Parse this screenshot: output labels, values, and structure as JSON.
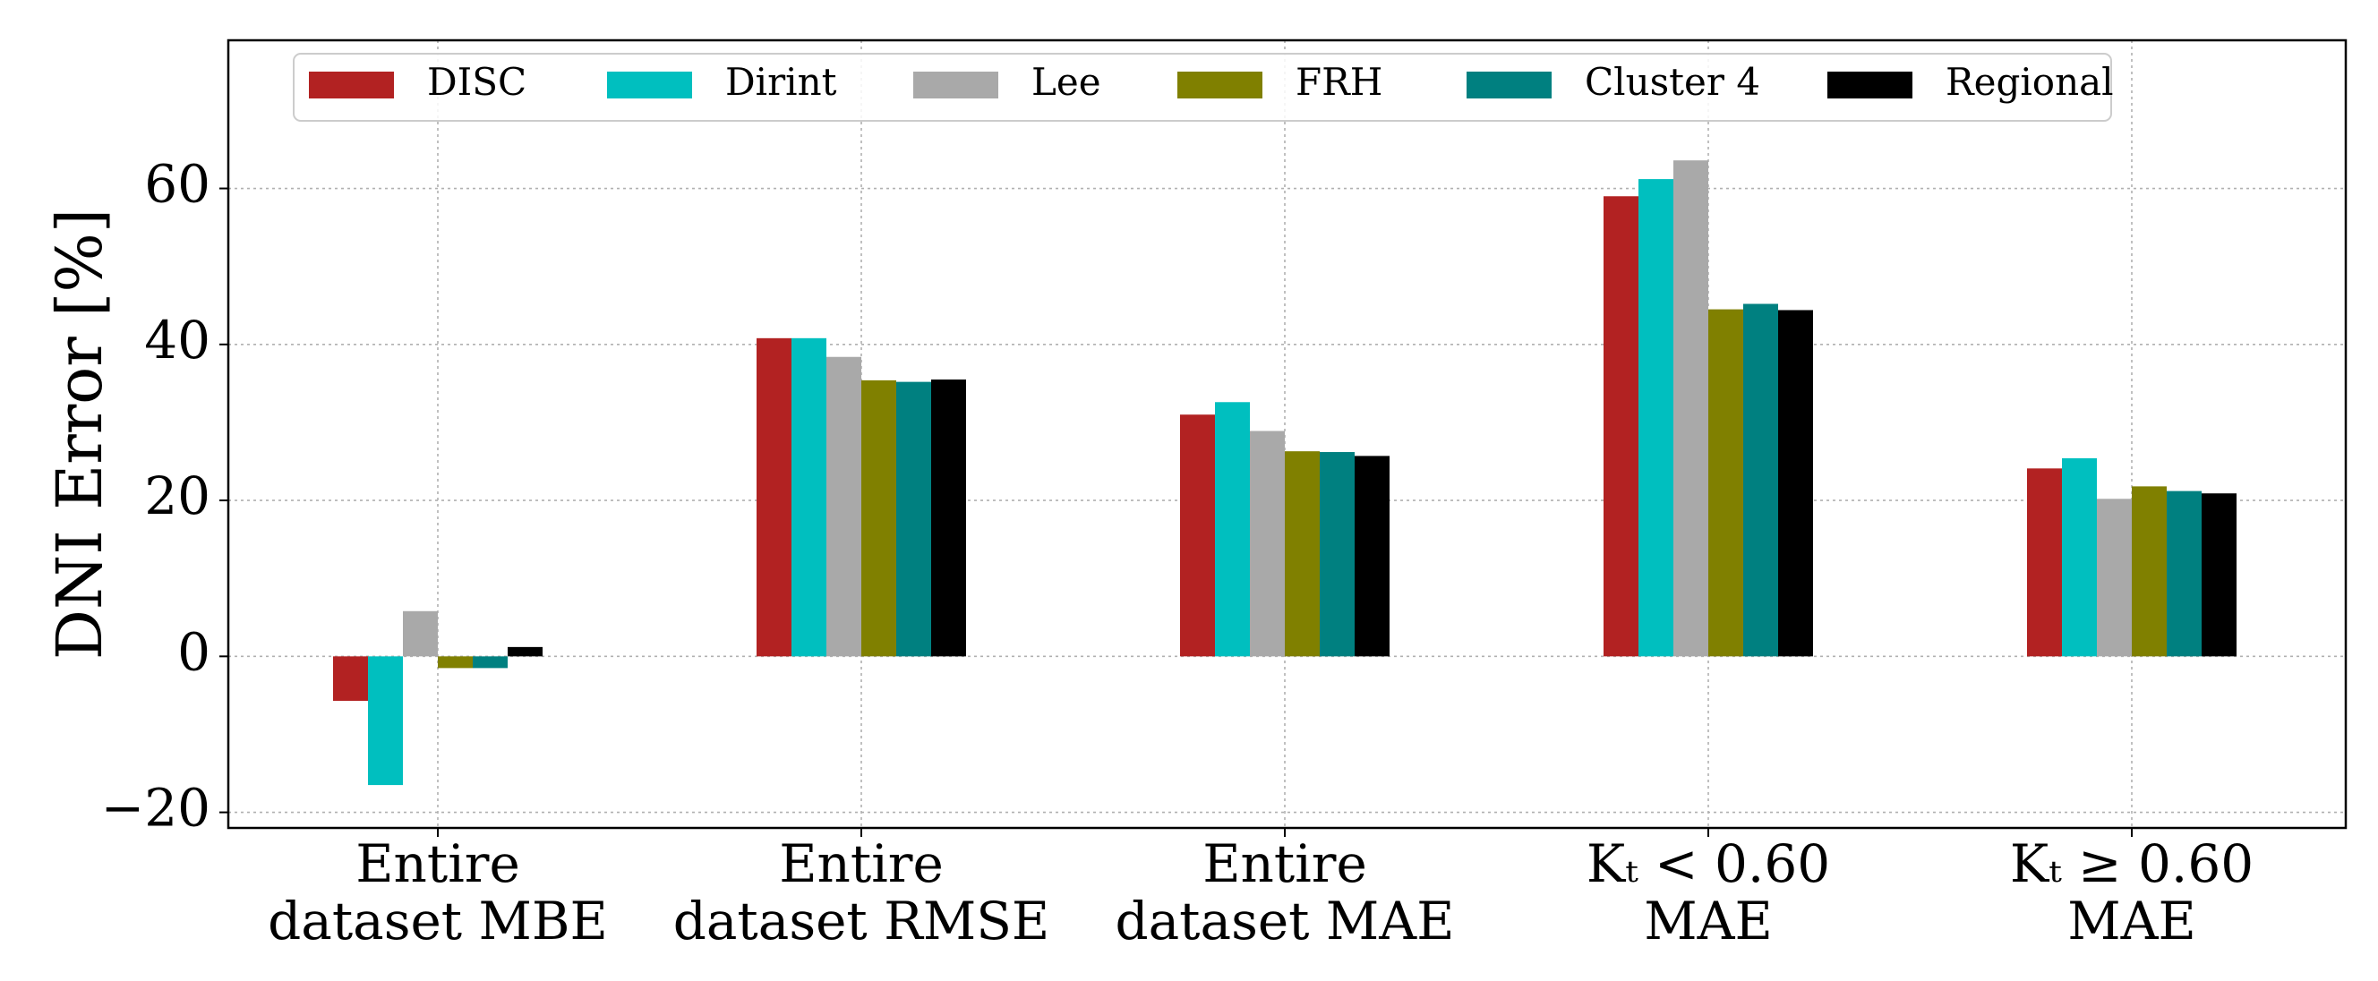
{
  "chart_data": {
    "type": "bar",
    "title": "",
    "xlabel": "",
    "ylabel": "DNI Error [%]",
    "ylim": [
      -22,
      79
    ],
    "yticks": [
      -20,
      0,
      20,
      40,
      60
    ],
    "ytick_labels": [
      "−20",
      "0",
      "20",
      "40",
      "60"
    ],
    "grid": true,
    "legend_position": "top",
    "categories": [
      [
        "Entire",
        "dataset MBE"
      ],
      [
        "Entire",
        "dataset RMSE"
      ],
      [
        "Entire",
        "dataset MAE"
      ],
      [
        "Kₜ < 0.60",
        "MAE"
      ],
      [
        "Kₜ ≥ 0.60",
        "MAE"
      ]
    ],
    "series": [
      {
        "name": "DISC",
        "color": "#b22222",
        "values": [
          -5.7,
          40.8,
          31.0,
          59.0,
          24.1
        ]
      },
      {
        "name": "Dirint",
        "color": "#00bfbf",
        "values": [
          -16.5,
          40.8,
          32.6,
          61.2,
          25.4
        ]
      },
      {
        "name": "Lee",
        "color": "#a9a9a9",
        "values": [
          5.8,
          38.4,
          28.9,
          63.6,
          20.2
        ]
      },
      {
        "name": "FRH",
        "color": "#808000",
        "values": [
          -1.5,
          35.4,
          26.3,
          44.5,
          21.8
        ]
      },
      {
        "name": "Cluster 4",
        "color": "#008080",
        "values": [
          -1.5,
          35.2,
          26.2,
          45.2,
          21.2
        ]
      },
      {
        "name": "Regional",
        "color": "#000000",
        "values": [
          1.2,
          35.5,
          25.7,
          44.4,
          20.9
        ]
      }
    ]
  }
}
